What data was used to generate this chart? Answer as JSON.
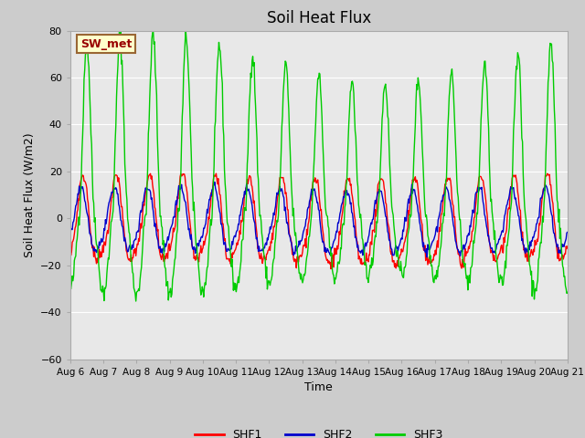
{
  "title": "Soil Heat Flux",
  "xlabel": "Time",
  "ylabel": "Soil Heat Flux (W/m2)",
  "ylim": [
    -60,
    80
  ],
  "yticks": [
    -60,
    -40,
    -20,
    0,
    20,
    40,
    60,
    80
  ],
  "annotation_text": "SW_met",
  "annotation_bg": "#FFFFCC",
  "annotation_border": "#996633",
  "annotation_text_color": "#990000",
  "line_colors": {
    "SHF1": "#FF0000",
    "SHF2": "#0000CC",
    "SHF3": "#00CC00"
  },
  "x_tick_labels": [
    "Aug 6",
    "Aug 7",
    "Aug 8",
    "Aug 9",
    "Aug 10",
    "Aug 11",
    "Aug 12",
    "Aug 13",
    "Aug 14",
    "Aug 15",
    "Aug 16",
    "Aug 17",
    "Aug 18",
    "Aug 19",
    "Aug 20",
    "Aug 21"
  ],
  "grid_color": "#FFFFFF",
  "plot_bg": "#E8E8E8",
  "fig_bg": "#CCCCCC",
  "legend_labels": [
    "SHF1",
    "SHF2",
    "SHF3"
  ]
}
